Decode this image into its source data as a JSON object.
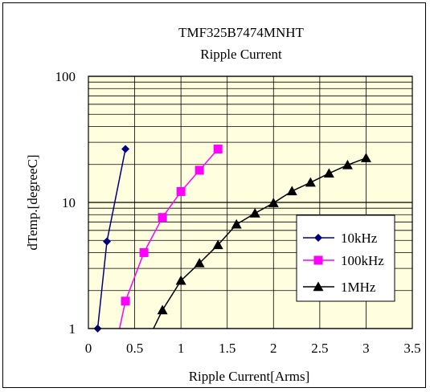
{
  "chart_data": {
    "type": "line",
    "title": "TMF325B7474MNHT",
    "subtitle": "Ripple Current",
    "xlabel": "Ripple Current[Arms]",
    "ylabel": "dTemp.[degreeC]",
    "xlim": [
      0,
      3.5
    ],
    "ylim": [
      1,
      100
    ],
    "yscale": "log",
    "grid": true,
    "legend_position": "right",
    "plot_background": "#ffffe0",
    "x_ticks": [
      "0",
      "0.5",
      "1",
      "1.5",
      "2",
      "2.5",
      "3",
      "3.5"
    ],
    "y_ticks": [
      "1",
      "10",
      "100"
    ],
    "series": [
      {
        "name": "10kHz",
        "color": "#000080",
        "marker": "diamond",
        "x": [
          0.1,
          0.2,
          0.4
        ],
        "y": [
          1.0,
          4.9,
          26.5
        ]
      },
      {
        "name": "100kHz",
        "color": "#ff00ff",
        "marker": "square",
        "x": [
          0.3,
          0.4,
          0.6,
          0.8,
          1.0,
          1.2,
          1.4
        ],
        "y": [
          0.75,
          1.65,
          4.0,
          7.6,
          12.2,
          18.0,
          26.5
        ]
      },
      {
        "name": "1MHz",
        "color": "#000000",
        "marker": "triangle",
        "x": [
          0.6,
          0.8,
          1.0,
          1.2,
          1.4,
          1.6,
          1.8,
          2.0,
          2.2,
          2.4,
          2.6,
          2.8,
          3.0
        ],
        "y": [
          0.7,
          1.4,
          2.4,
          3.3,
          4.6,
          6.7,
          8.2,
          9.9,
          12.3,
          14.4,
          17.0,
          19.8,
          22.5
        ]
      }
    ]
  }
}
